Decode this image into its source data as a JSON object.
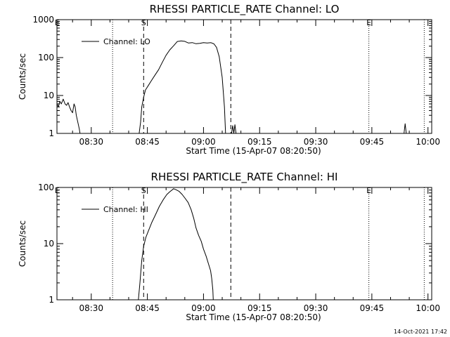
{
  "chart_data": [
    {
      "type": "line",
      "title": "RHESSI PARTICLE_RATE Channel: LO",
      "xlabel": "Start Time (15-Apr-07 08:20:50)",
      "ylabel": "Counts/sec",
      "yscale": "log",
      "ylim": [
        1,
        1000
      ],
      "yticks": [
        1,
        10,
        100,
        1000
      ],
      "ytick_labels": [
        "1",
        "10",
        "100",
        "1000"
      ],
      "xlim_minutes_from_0820": [
        0.83,
        101.0
      ],
      "xticks": [
        10,
        25,
        40,
        55,
        70,
        85,
        100
      ],
      "xtick_labels": [
        "08:30",
        "08:45",
        "09:00",
        "09:15",
        "09:30",
        "09:45",
        "10:00"
      ],
      "legend": "Channel: LO",
      "legend_location": "top-left",
      "markers": {
        "dotted": [
          15.7,
          84.2,
          99.0
        ],
        "dashed": [
          24.0,
          47.3
        ],
        "labels": [
          {
            "text": "E",
            "x": 0.9
          },
          {
            "text": "S",
            "x": 24.0
          },
          {
            "text": "E",
            "x": 84.2
          }
        ]
      },
      "series": [
        {
          "name": "Channel: LO",
          "segments": [
            [
              [
                0.83,
                6
              ],
              [
                1.2,
                5
              ],
              [
                1.6,
                7
              ],
              [
                2.0,
                6
              ],
              [
                2.5,
                8
              ],
              [
                3.0,
                6
              ],
              [
                3.4,
                5.5
              ],
              [
                3.8,
                6.5
              ],
              [
                4.2,
                5
              ],
              [
                4.6,
                4
              ],
              [
                5.0,
                3.5
              ],
              [
                5.4,
                6
              ],
              [
                5.7,
                5
              ],
              [
                6.0,
                3
              ],
              [
                6.4,
                2
              ],
              [
                6.8,
                1.3
              ],
              [
                7.0,
                1
              ]
            ],
            [
              [
                22.8,
                1
              ],
              [
                23.2,
                2
              ],
              [
                23.5,
                5
              ],
              [
                24.0,
                9
              ],
              [
                24.5,
                14
              ],
              [
                25.2,
                18
              ],
              [
                26.0,
                24
              ],
              [
                27.0,
                34
              ],
              [
                28.0,
                48
              ],
              [
                29.0,
                75
              ],
              [
                30.0,
                115
              ],
              [
                31.0,
                160
              ],
              [
                32.0,
                205
              ],
              [
                33.0,
                265
              ],
              [
                34.0,
                275
              ],
              [
                35.0,
                268
              ],
              [
                36.0,
                242
              ],
              [
                37.0,
                248
              ],
              [
                38.0,
                232
              ],
              [
                39.0,
                237
              ],
              [
                40.0,
                247
              ],
              [
                41.0,
                243
              ],
              [
                42.0,
                247
              ],
              [
                42.8,
                230
              ],
              [
                43.5,
                185
              ],
              [
                44.2,
                105
              ],
              [
                45.0,
                30
              ],
              [
                45.6,
                5
              ],
              [
                45.9,
                1
              ]
            ],
            [
              [
                47.5,
                1
              ],
              [
                47.8,
                1.6
              ],
              [
                48.1,
                1
              ],
              [
                48.4,
                1.7
              ],
              [
                48.7,
                1
              ]
            ],
            [
              [
                93.6,
                1
              ],
              [
                93.9,
                1.8
              ],
              [
                94.2,
                1
              ]
            ]
          ]
        }
      ]
    },
    {
      "type": "line",
      "title": "RHESSI PARTICLE_RATE Channel: HI",
      "xlabel": "Start Time (15-Apr-07 08:20:50)",
      "ylabel": "Counts/sec",
      "yscale": "log",
      "ylim": [
        1,
        100
      ],
      "yticks": [
        1,
        10,
        100
      ],
      "ytick_labels": [
        "1",
        "10",
        "100"
      ],
      "xlim_minutes_from_0820": [
        0.83,
        101.0
      ],
      "xticks": [
        10,
        25,
        40,
        55,
        70,
        85,
        100
      ],
      "xtick_labels": [
        "08:30",
        "08:45",
        "09:00",
        "09:15",
        "09:30",
        "09:45",
        "10:00"
      ],
      "legend": "Channel: HI",
      "legend_location": "top-left",
      "markers": {
        "dotted": [
          15.7,
          84.2,
          99.0
        ],
        "dashed": [
          24.0,
          47.3
        ],
        "labels": [
          {
            "text": "E",
            "x": 0.9
          },
          {
            "text": "S",
            "x": 24.0
          },
          {
            "text": "E",
            "x": 84.2
          }
        ]
      },
      "series": [
        {
          "name": "Channel: HI",
          "segments": [
            [
              [
                22.6,
                1
              ],
              [
                23.0,
                2
              ],
              [
                23.5,
                5
              ],
              [
                24.0,
                9
              ],
              [
                24.6,
                13
              ],
              [
                25.3,
                17
              ],
              [
                26.2,
                24
              ],
              [
                27.2,
                33
              ],
              [
                28.2,
                46
              ],
              [
                29.2,
                60
              ],
              [
                30.2,
                75
              ],
              [
                31.0,
                84
              ],
              [
                32.0,
                95
              ],
              [
                32.7,
                91
              ],
              [
                33.5,
                85
              ],
              [
                34.3,
                75
              ],
              [
                35.1,
                64
              ],
              [
                35.9,
                54
              ],
              [
                36.7,
                40
              ],
              [
                37.4,
                28
              ],
              [
                38.0,
                19
              ],
              [
                38.7,
                14
              ],
              [
                39.4,
                11
              ],
              [
                40.0,
                8
              ],
              [
                40.7,
                6
              ],
              [
                41.4,
                4.2
              ],
              [
                41.9,
                3.3
              ],
              [
                42.2,
                2.4
              ],
              [
                42.5,
                1.5
              ],
              [
                42.6,
                1
              ]
            ]
          ]
        }
      ]
    }
  ],
  "footer": {
    "timestamp": "14-Oct-2021 17:42"
  }
}
